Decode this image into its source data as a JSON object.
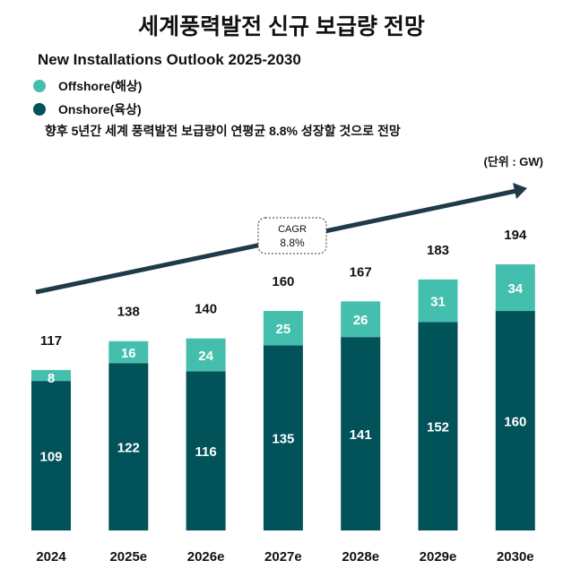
{
  "title": "세계풍력발전 신규 보급량 전망",
  "subtitle": "New Installations Outlook 2025-2030",
  "note": "향후 5년간 세계 풍력발전 보급량이 연평균 8.8% 성장할 것으로 전망",
  "unit": "(단위 : GW)",
  "colors": {
    "offshore": "#45BFAD",
    "onshore": "#02525A",
    "arrow": "#1F3A48"
  },
  "chart_data": {
    "type": "bar",
    "stacked": true,
    "categories": [
      "2024",
      "2025e",
      "2026e",
      "2027e",
      "2028e",
      "2029e",
      "2030e"
    ],
    "series": [
      {
        "name": "Onshore(육상)",
        "values": [
          109,
          122,
          116,
          135,
          141,
          152,
          160
        ]
      },
      {
        "name": "Offshore(해상)",
        "values": [
          8,
          16,
          24,
          25,
          26,
          31,
          34
        ]
      }
    ],
    "totals": [
      117,
      138,
      140,
      160,
      167,
      183,
      194
    ],
    "annotation": {
      "line1": "CAGR",
      "line2": "8.8%"
    },
    "legend_placement": "top-left",
    "grid": false,
    "ylim": [
      0,
      194
    ]
  }
}
